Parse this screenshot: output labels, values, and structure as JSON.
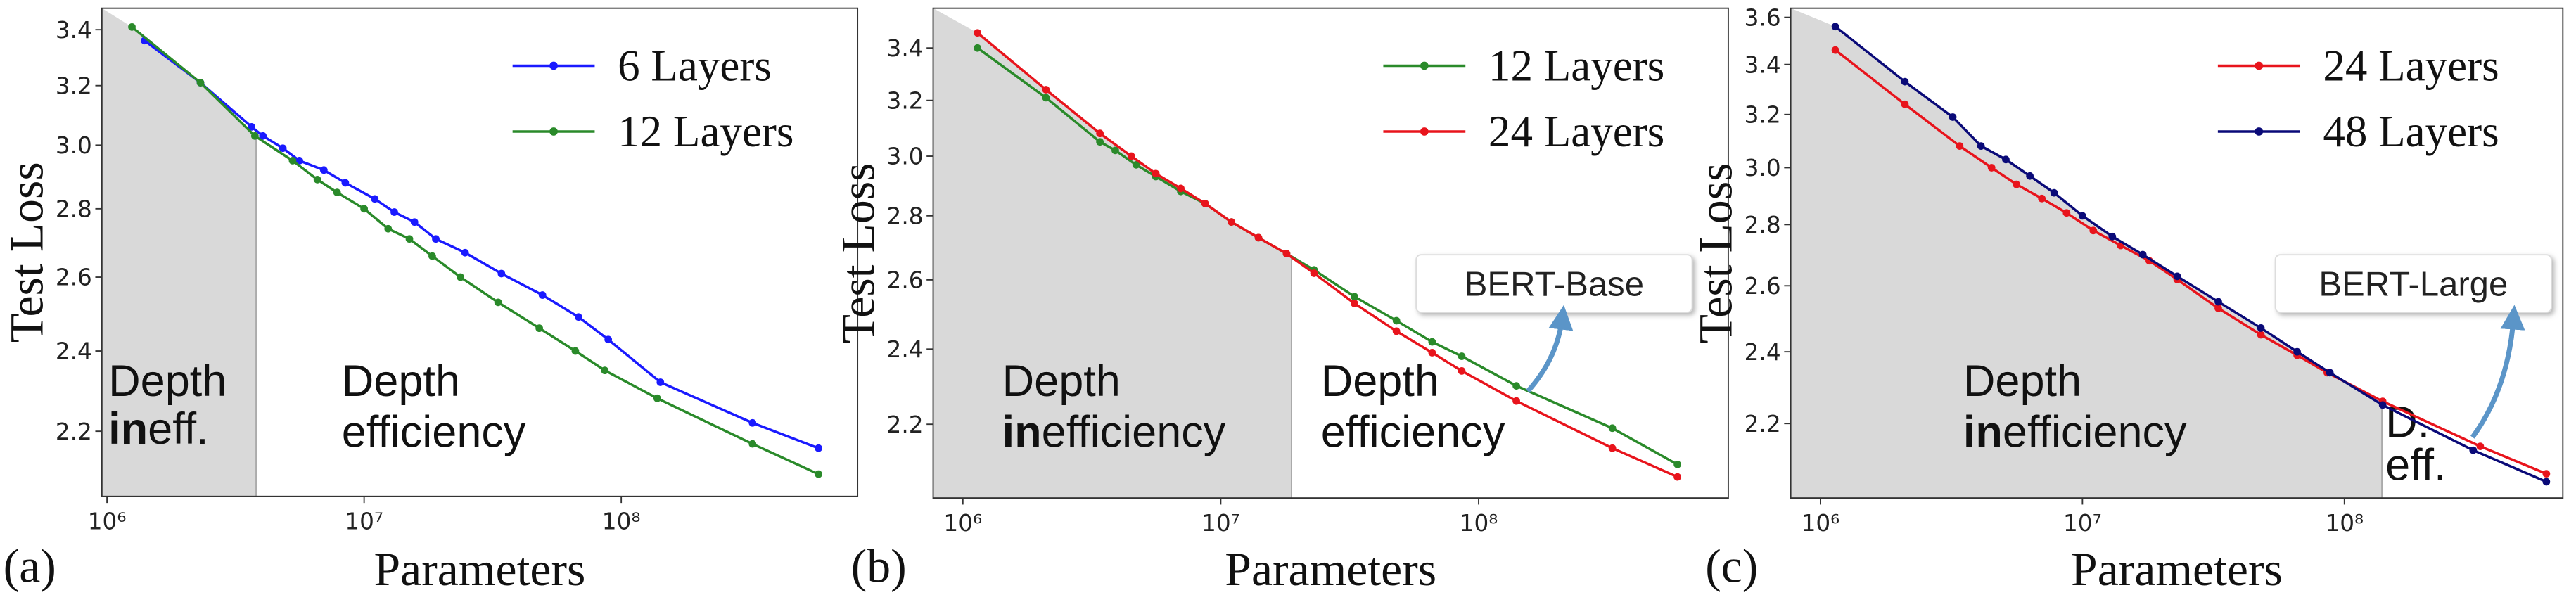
{
  "chart_data": [
    {
      "type": "line",
      "panel_label": "(a)",
      "xlabel": "Parameters",
      "ylabel": "Test Loss",
      "xlog": true,
      "ylog": true,
      "legend": "upper right",
      "shade_color": "#d9d9d9",
      "xlim": [
        955000,
        830000000
      ],
      "ylim": [
        2.05,
        3.48
      ],
      "xticks": [
        {
          "value": 1000000,
          "label": "10⁶"
        },
        {
          "value": 10000000,
          "label": "10⁷"
        },
        {
          "value": 100000000,
          "label": "10⁸"
        }
      ],
      "yticks": [
        2.2,
        2.4,
        2.6,
        2.8,
        {
          "value": 3,
          "label": "3.0"
        },
        3.2,
        3.4
      ],
      "shade_until": 3800000,
      "annotations": [
        {
          "lines": [
            [
              {
                "text": "Depth"
              }
            ],
            [
              {
                "text": "in",
                "bold": true
              },
              {
                "text": "eff."
              }
            ]
          ]
        },
        {
          "lines": [
            [
              {
                "text": "Depth"
              }
            ],
            [
              {
                "text": "efficiency"
              }
            ]
          ]
        }
      ],
      "series": [
        {
          "name": "6 Layers",
          "color": "#1a1aff",
          "x": [
            1400000,
            2310000,
            3650000,
            4040000,
            4830000,
            5600000,
            6970000,
            8450000,
            11000000,
            13100000,
            15700000,
            19000000,
            24700000,
            34200000,
            49400000,
            68200000,
            89000000,
            142000000,
            324000000,
            585000000
          ],
          "values": [
            3.36,
            3.21,
            3.06,
            3.03,
            2.99,
            2.95,
            2.92,
            2.88,
            2.83,
            2.79,
            2.76,
            2.71,
            2.67,
            2.61,
            2.55,
            2.49,
            2.43,
            2.32,
            2.22,
            2.16
          ]
        },
        {
          "name": "12 Layers",
          "color": "#2a8a2a",
          "x": [
            1250000,
            2310000,
            3760000,
            5270000,
            6580000,
            7850000,
            10000000,
            12400000,
            15000000,
            18400000,
            23700000,
            33200000,
            48000000,
            66300000,
            86300000,
            138000000,
            324000000,
            585000000
          ],
          "values": [
            3.41,
            3.21,
            3.03,
            2.95,
            2.89,
            2.85,
            2.8,
            2.74,
            2.71,
            2.66,
            2.6,
            2.53,
            2.46,
            2.4,
            2.35,
            2.28,
            2.17,
            2.1
          ]
        }
      ]
    },
    {
      "type": "line",
      "panel_label": "(b)",
      "xlabel": "Parameters",
      "ylabel": "Test Loss",
      "xlog": true,
      "ylog": true,
      "legend": "upper right",
      "shade_color": "#d9d9d9",
      "xlim": [
        767000,
        929000000
      ],
      "ylim": [
        2.02,
        3.56
      ],
      "xticks": [
        {
          "value": 1000000,
          "label": "10⁶"
        },
        {
          "value": 10000000,
          "label": "10⁷"
        },
        {
          "value": 100000000,
          "label": "10⁸"
        }
      ],
      "yticks": [
        2.2,
        2.4,
        2.6,
        2.8,
        {
          "value": 3,
          "label": "3.0"
        },
        3.2,
        3.4
      ],
      "shade_until": 18800000,
      "callout": "BERT-Base",
      "annotations": [
        {
          "lines": [
            [
              {
                "text": "Depth"
              }
            ],
            [
              {
                "text": "in",
                "bold": true
              },
              {
                "text": "efficiency"
              }
            ]
          ]
        },
        {
          "lines": [
            [
              {
                "text": "Depth"
              }
            ],
            [
              {
                "text": "efficiency"
              }
            ]
          ]
        }
      ],
      "series": [
        {
          "name": "12 Layers",
          "color": "#2a8a2a",
          "x": [
            1140000,
            2100000,
            3400000,
            3900000,
            4700000,
            5600000,
            7000000,
            8700000,
            11000000,
            14000000,
            18000000,
            23000000,
            33000000,
            48000000,
            66000000,
            86000000,
            140000000,
            330000000,
            590000000
          ],
          "values": [
            3.4,
            3.21,
            3.05,
            3.02,
            2.97,
            2.93,
            2.88,
            2.84,
            2.78,
            2.73,
            2.68,
            2.63,
            2.55,
            2.48,
            2.42,
            2.38,
            2.3,
            2.19,
            2.1
          ]
        },
        {
          "name": "24 Layers",
          "color": "#e8141c",
          "x": [
            1140000,
            2100000,
            3400000,
            4500000,
            5600000,
            7000000,
            8700000,
            11000000,
            14000000,
            18000000,
            23000000,
            33000000,
            48000000,
            66000000,
            86000000,
            140000000,
            330000000,
            590000000
          ],
          "values": [
            3.46,
            3.24,
            3.08,
            3.0,
            2.94,
            2.89,
            2.84,
            2.78,
            2.73,
            2.68,
            2.62,
            2.53,
            2.45,
            2.39,
            2.34,
            2.26,
            2.14,
            2.07
          ]
        }
      ]
    },
    {
      "type": "line",
      "panel_label": "(c)",
      "xlabel": "Parameters",
      "ylabel": "Test Loss",
      "xlog": true,
      "ylog": true,
      "legend": "upper right",
      "shade_color": "#d9d9d9",
      "xlim": [
        770000,
        682000000
      ],
      "ylim": [
        2.01,
        3.64
      ],
      "xticks": [
        {
          "value": 1000000,
          "label": "10⁶"
        },
        {
          "value": 10000000,
          "label": "10⁷"
        },
        {
          "value": 100000000,
          "label": "10⁸"
        }
      ],
      "yticks": [
        2.2,
        2.4,
        2.6,
        2.8,
        {
          "value": 3,
          "label": "3.0"
        },
        3.2,
        3.4,
        3.6
      ],
      "shade_until": 139000000,
      "callout": "BERT-Large",
      "annotations": [
        {
          "lines": [
            [
              {
                "text": "Depth"
              }
            ],
            [
              {
                "text": "in",
                "bold": true
              },
              {
                "text": "efficiency"
              }
            ]
          ]
        },
        {
          "lines": [
            [
              {
                "text": "D."
              }
            ],
            [
              {
                "text": "eff."
              }
            ]
          ]
        }
      ],
      "series": [
        {
          "name": "24 Layers",
          "color": "#e8141c",
          "x": [
            1140000,
            2100000,
            3400000,
            4500000,
            5600000,
            7000000,
            8700000,
            11000000,
            14000000,
            18000000,
            23000000,
            33000000,
            48000000,
            66000000,
            86000000,
            140000000,
            330000000,
            590000000
          ],
          "values": [
            3.46,
            3.24,
            3.08,
            3.0,
            2.94,
            2.89,
            2.84,
            2.78,
            2.73,
            2.68,
            2.62,
            2.53,
            2.45,
            2.39,
            2.34,
            2.26,
            2.14,
            2.07
          ]
        },
        {
          "name": "48 Layers",
          "color": "#0a0a78",
          "x": [
            1140000,
            2100000,
            3200000,
            4100000,
            5100000,
            6300000,
            7800000,
            10000000,
            13000000,
            17000000,
            23000000,
            33000000,
            48000000,
            66000000,
            88000000,
            140000000,
            310000000,
            590000000
          ],
          "values": [
            3.56,
            3.33,
            3.19,
            3.08,
            3.03,
            2.97,
            2.91,
            2.83,
            2.76,
            2.7,
            2.63,
            2.55,
            2.47,
            2.4,
            2.34,
            2.25,
            2.13,
            2.05
          ]
        }
      ]
    }
  ]
}
